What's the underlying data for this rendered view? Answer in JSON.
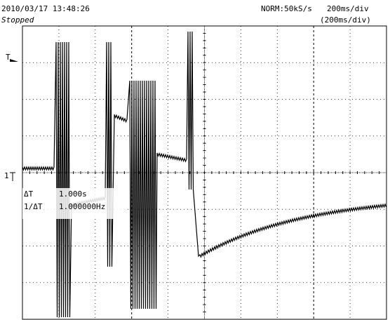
{
  "header": {
    "datetime": "2010/03/17  13:48:26",
    "status": "Stopped",
    "mode": "NORM:50kS/s",
    "timebase": "200ms/div",
    "timebase_zoom": "(200ms/div)"
  },
  "cursor": {
    "dt_label": "ΔT",
    "dt_value": "1.000s",
    "inv_label": "1/ΔT",
    "inv_value": "1.000000Hz"
  },
  "markers": {
    "trigger": "T",
    "channel": "1"
  }
}
